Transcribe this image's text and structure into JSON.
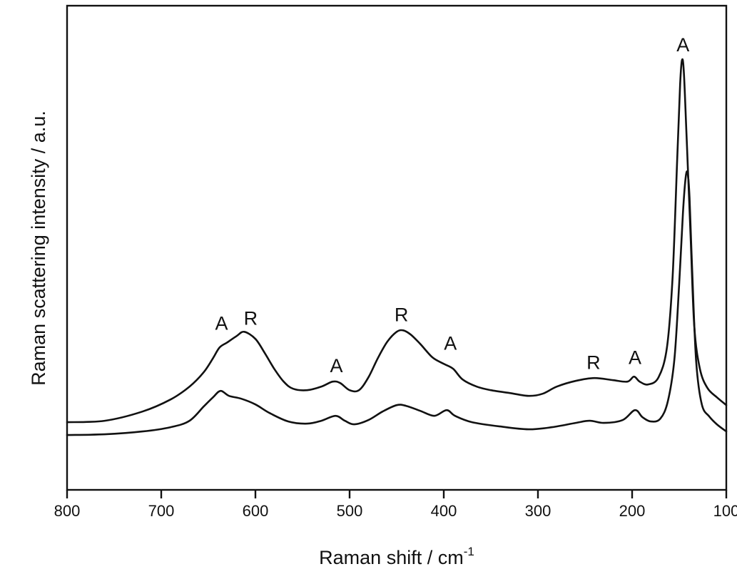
{
  "chart_data": {
    "type": "line",
    "title": "",
    "xlabel": "Raman shift / cm",
    "xlabel_superscript": "-1",
    "ylabel": "Raman scattering intensity / a.u.",
    "xlim": [
      800,
      100
    ],
    "x_reversed": true,
    "ylim": [
      0,
      680
    ],
    "x_ticks": [
      800,
      700,
      600,
      500,
      400,
      300,
      200,
      100
    ],
    "x_tick_labels": [
      "800",
      "700",
      "600",
      "500",
      "400",
      "300",
      "200",
      "100"
    ],
    "y_ticks": [],
    "grid": false,
    "legend": null,
    "series": [
      {
        "name": "upper spectrum",
        "color": "#111111",
        "points": [
          [
            800,
            95
          ],
          [
            760,
            97
          ],
          [
            720,
            110
          ],
          [
            690,
            127
          ],
          [
            670,
            145
          ],
          [
            655,
            165
          ],
          [
            645,
            185
          ],
          [
            638,
            200
          ],
          [
            630,
            207
          ],
          [
            620,
            216
          ],
          [
            612,
            222
          ],
          [
            600,
            212
          ],
          [
            590,
            192
          ],
          [
            580,
            170
          ],
          [
            570,
            152
          ],
          [
            560,
            142
          ],
          [
            545,
            140
          ],
          [
            530,
            145
          ],
          [
            518,
            152
          ],
          [
            510,
            150
          ],
          [
            500,
            140
          ],
          [
            490,
            140
          ],
          [
            480,
            158
          ],
          [
            470,
            185
          ],
          [
            460,
            208
          ],
          [
            450,
            222
          ],
          [
            443,
            224
          ],
          [
            435,
            218
          ],
          [
            425,
            205
          ],
          [
            412,
            186
          ],
          [
            400,
            177
          ],
          [
            390,
            170
          ],
          [
            380,
            155
          ],
          [
            365,
            145
          ],
          [
            350,
            140
          ],
          [
            330,
            136
          ],
          [
            310,
            132
          ],
          [
            295,
            135
          ],
          [
            280,
            145
          ],
          [
            260,
            153
          ],
          [
            240,
            157
          ],
          [
            220,
            154
          ],
          [
            205,
            152
          ],
          [
            198,
            159
          ],
          [
            192,
            152
          ],
          [
            183,
            148
          ],
          [
            172,
            158
          ],
          [
            163,
            200
          ],
          [
            157,
            300
          ],
          [
            152,
            470
          ],
          [
            149,
            570
          ],
          [
            147,
            604
          ],
          [
            145,
            585
          ],
          [
            142,
            490
          ],
          [
            138,
            360
          ],
          [
            134,
            230
          ],
          [
            128,
            170
          ],
          [
            120,
            143
          ],
          [
            110,
            130
          ],
          [
            100,
            119
          ]
        ]
      },
      {
        "name": "lower spectrum",
        "color": "#111111",
        "points": [
          [
            800,
            77
          ],
          [
            760,
            78
          ],
          [
            720,
            82
          ],
          [
            690,
            88
          ],
          [
            670,
            97
          ],
          [
            655,
            117
          ],
          [
            645,
            130
          ],
          [
            637,
            139
          ],
          [
            628,
            132
          ],
          [
            615,
            128
          ],
          [
            600,
            120
          ],
          [
            585,
            108
          ],
          [
            565,
            96
          ],
          [
            545,
            93
          ],
          [
            530,
            97
          ],
          [
            515,
            104
          ],
          [
            505,
            97
          ],
          [
            495,
            92
          ],
          [
            480,
            98
          ],
          [
            465,
            110
          ],
          [
            450,
            119
          ],
          [
            440,
            118
          ],
          [
            425,
            111
          ],
          [
            410,
            104
          ],
          [
            397,
            112
          ],
          [
            388,
            104
          ],
          [
            370,
            95
          ],
          [
            340,
            89
          ],
          [
            310,
            85
          ],
          [
            285,
            88
          ],
          [
            260,
            94
          ],
          [
            245,
            97
          ],
          [
            230,
            94
          ],
          [
            210,
            98
          ],
          [
            197,
            112
          ],
          [
            189,
            102
          ],
          [
            180,
            96
          ],
          [
            170,
            100
          ],
          [
            162,
            125
          ],
          [
            155,
            185
          ],
          [
            150,
            290
          ],
          [
            146,
            390
          ],
          [
            143,
            440
          ],
          [
            141,
            444
          ],
          [
            139,
            410
          ],
          [
            136,
            300
          ],
          [
            132,
            180
          ],
          [
            126,
            120
          ],
          [
            118,
            103
          ],
          [
            110,
            92
          ],
          [
            100,
            82
          ]
        ]
      }
    ],
    "annotations": [
      {
        "text": "A",
        "x": 636,
        "y": 225
      },
      {
        "text": "R",
        "x": 605,
        "y": 232
      },
      {
        "text": "A",
        "x": 514,
        "y": 165
      },
      {
        "text": "R",
        "x": 445,
        "y": 237
      },
      {
        "text": "A",
        "x": 393,
        "y": 197
      },
      {
        "text": "R",
        "x": 241,
        "y": 170
      },
      {
        "text": "A",
        "x": 197,
        "y": 177
      },
      {
        "text": "A",
        "x": 146,
        "y": 616
      }
    ]
  }
}
